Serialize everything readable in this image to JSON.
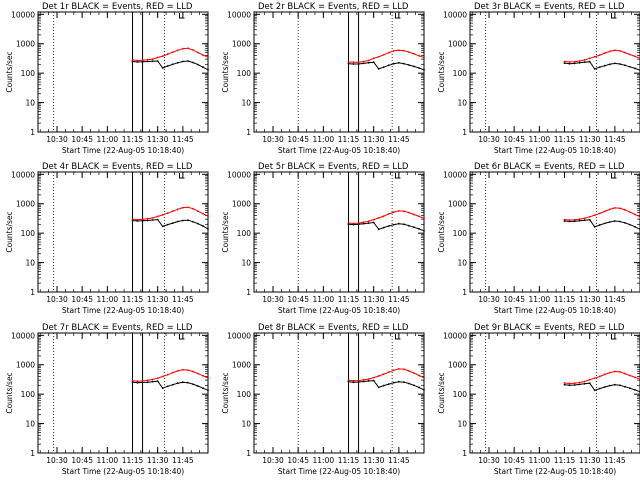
{
  "figure": {
    "x_tick_labels": [
      "10:30",
      "10:45",
      "11:00",
      "11:15",
      "11:30",
      "11:45"
    ],
    "y_tick_labels": [
      "1",
      "10",
      "100",
      "1000",
      "10000"
    ],
    "ylabel": "Counts/sec",
    "xlabel": "Start Time (22-Aug-05 10:18:40)"
  },
  "chart_data": [
    {
      "type": "line",
      "title": "Det 1r BLACK = Events, RED = LLD",
      "xlabel": "Start Time (22-Aug-05 10:18:40)",
      "ylabel": "Counts/sec",
      "xlim": [
        "10:18:40",
        "12:00"
      ],
      "ylim": [
        1,
        12000
      ],
      "yscale": "log",
      "x_ticks": [
        "10:30",
        "10:45",
        "11:00",
        "11:15",
        "11:30",
        "11:45"
      ],
      "vertical_markers": {
        "dotted": [
          "10:28",
          "11:34"
        ],
        "solid": [
          "11:15",
          "11:21"
        ]
      },
      "x": [
        "11:15",
        "11:18",
        "11:21",
        "11:24",
        "11:27",
        "11:30",
        "11:33",
        "11:36",
        "11:39",
        "11:42",
        "11:45",
        "11:48",
        "11:51",
        "11:54",
        "11:57",
        "12:00"
      ],
      "series": [
        {
          "name": "BLACK = Events",
          "color": "#000000",
          "values": [
            250,
            240,
            245,
            250,
            255,
            260,
            150,
            175,
            200,
            225,
            250,
            260,
            230,
            195,
            160,
            130
          ]
        },
        {
          "name": "RED = LLD",
          "color": "#ff0000",
          "values": [
            280,
            270,
            275,
            285,
            300,
            340,
            380,
            440,
            520,
            600,
            680,
            700,
            620,
            500,
            410,
            350
          ]
        }
      ]
    },
    {
      "type": "line",
      "title": "Det 2r BLACK = Events, RED = LLD",
      "xlabel": "Start Time (22-Aug-05 10:18:40)",
      "ylabel": "Counts/sec",
      "xlim": [
        "10:18:40",
        "12:00"
      ],
      "ylim": [
        1,
        12000
      ],
      "yscale": "log",
      "x_ticks": [
        "10:30",
        "10:45",
        "11:00",
        "11:15",
        "11:30",
        "11:45"
      ],
      "vertical_markers": {
        "dotted": [
          "10:45",
          "11:41"
        ],
        "solid": [
          "11:15",
          "11:21"
        ]
      },
      "x": [
        "11:15",
        "11:18",
        "11:21",
        "11:24",
        "11:27",
        "11:30",
        "11:33",
        "11:36",
        "11:39",
        "11:42",
        "11:45",
        "11:48",
        "11:51",
        "11:54",
        "11:57",
        "12:00"
      ],
      "series": [
        {
          "name": "BLACK = Events",
          "color": "#000000",
          "values": [
            210,
            205,
            205,
            215,
            225,
            235,
            140,
            160,
            185,
            210,
            225,
            210,
            190,
            170,
            150,
            130
          ]
        },
        {
          "name": "RED = LLD",
          "color": "#ff0000",
          "values": [
            240,
            235,
            235,
            250,
            270,
            320,
            360,
            420,
            500,
            570,
            600,
            580,
            520,
            450,
            390,
            340
          ]
        }
      ]
    },
    {
      "type": "line",
      "title": "Det 3r BLACK = Events, RED = LLD",
      "xlabel": "Start Time (22-Aug-05 10:18:40)",
      "ylabel": "Counts/sec",
      "xlim": [
        "10:18:40",
        "12:00"
      ],
      "ylim": [
        1,
        12000
      ],
      "yscale": "log",
      "x_ticks": [
        "10:30",
        "10:45",
        "11:00",
        "11:15",
        "11:30",
        "11:45"
      ],
      "vertical_markers": {
        "dotted": [
          "10:28",
          "11:34"
        ],
        "solid": []
      },
      "x": [
        "11:15",
        "11:18",
        "11:21",
        "11:24",
        "11:27",
        "11:30",
        "11:33",
        "11:36",
        "11:39",
        "11:42",
        "11:45",
        "11:48",
        "11:51",
        "11:54",
        "11:57",
        "12:00"
      ],
      "series": [
        {
          "name": "BLACK = Events",
          "color": "#000000",
          "values": [
            220,
            210,
            215,
            225,
            235,
            245,
            140,
            160,
            180,
            200,
            215,
            205,
            185,
            165,
            145,
            125
          ]
        },
        {
          "name": "RED = LLD",
          "color": "#ff0000",
          "values": [
            250,
            240,
            245,
            260,
            280,
            320,
            360,
            410,
            480,
            550,
            600,
            570,
            500,
            430,
            370,
            320
          ]
        }
      ]
    },
    {
      "type": "line",
      "title": "Det 4r BLACK = Events, RED = LLD",
      "xlabel": "Start Time (22-Aug-05 10:18:40)",
      "ylabel": "Counts/sec",
      "xlim": [
        "10:18:40",
        "12:00"
      ],
      "ylim": [
        1,
        12000
      ],
      "yscale": "log",
      "x_ticks": [
        "10:30",
        "10:45",
        "11:00",
        "11:15",
        "11:30",
        "11:45"
      ],
      "vertical_markers": {
        "dotted": [
          "10:28",
          "11:34"
        ],
        "solid": [
          "11:15",
          "11:21"
        ]
      },
      "x": [
        "11:15",
        "11:18",
        "11:21",
        "11:24",
        "11:27",
        "11:30",
        "11:33",
        "11:36",
        "11:39",
        "11:42",
        "11:45",
        "11:48",
        "11:51",
        "11:54",
        "11:57",
        "12:00"
      ],
      "series": [
        {
          "name": "BLACK = Events",
          "color": "#000000",
          "values": [
            270,
            260,
            265,
            270,
            280,
            290,
            170,
            195,
            220,
            250,
            270,
            275,
            245,
            210,
            175,
            140
          ]
        },
        {
          "name": "RED = LLD",
          "color": "#ff0000",
          "values": [
            300,
            290,
            295,
            310,
            330,
            370,
            420,
            480,
            560,
            650,
            740,
            760,
            680,
            560,
            460,
            380
          ]
        }
      ]
    },
    {
      "type": "line",
      "title": "Det 5r BLACK = Events, RED = LLD",
      "xlabel": "Start Time (22-Aug-05 10:18:40)",
      "ylabel": "Counts/sec",
      "xlim": [
        "10:18:40",
        "12:00"
      ],
      "ylim": [
        1,
        12000
      ],
      "yscale": "log",
      "x_ticks": [
        "10:30",
        "10:45",
        "11:00",
        "11:15",
        "11:30",
        "11:45"
      ],
      "vertical_markers": {
        "dotted": [
          "10:45",
          "11:41"
        ],
        "solid": [
          "11:15",
          "11:21"
        ]
      },
      "x": [
        "11:15",
        "11:18",
        "11:21",
        "11:24",
        "11:27",
        "11:30",
        "11:33",
        "11:36",
        "11:39",
        "11:42",
        "11:45",
        "11:48",
        "11:51",
        "11:54",
        "11:57",
        "12:00"
      ],
      "series": [
        {
          "name": "BLACK = Events",
          "color": "#000000",
          "values": [
            200,
            195,
            200,
            210,
            220,
            230,
            135,
            155,
            175,
            195,
            210,
            200,
            180,
            160,
            140,
            120
          ]
        },
        {
          "name": "RED = LLD",
          "color": "#ff0000",
          "values": [
            220,
            215,
            220,
            235,
            255,
            290,
            330,
            380,
            450,
            520,
            570,
            560,
            500,
            430,
            370,
            320
          ]
        }
      ]
    },
    {
      "type": "line",
      "title": "Det 6r BLACK = Events, RED = LLD",
      "xlabel": "Start Time (22-Aug-05 10:18:40)",
      "ylabel": "Counts/sec",
      "xlim": [
        "10:18:40",
        "12:00"
      ],
      "ylim": [
        1,
        12000
      ],
      "yscale": "log",
      "x_ticks": [
        "10:30",
        "10:45",
        "11:00",
        "11:15",
        "11:30",
        "11:45"
      ],
      "vertical_markers": {
        "dotted": [
          "10:28",
          "11:34"
        ],
        "solid": []
      },
      "x": [
        "11:15",
        "11:18",
        "11:21",
        "11:24",
        "11:27",
        "11:30",
        "11:33",
        "11:36",
        "11:39",
        "11:42",
        "11:45",
        "11:48",
        "11:51",
        "11:54",
        "11:57",
        "12:00"
      ],
      "series": [
        {
          "name": "BLACK = Events",
          "color": "#000000",
          "values": [
            260,
            250,
            255,
            265,
            275,
            285,
            165,
            190,
            215,
            240,
            260,
            250,
            225,
            195,
            165,
            135
          ]
        },
        {
          "name": "RED = LLD",
          "color": "#ff0000",
          "values": [
            290,
            280,
            285,
            300,
            320,
            360,
            410,
            470,
            550,
            640,
            720,
            700,
            620,
            520,
            430,
            360
          ]
        }
      ]
    },
    {
      "type": "line",
      "title": "Det 7r BLACK = Events, RED = LLD",
      "xlabel": "Start Time (22-Aug-05 10:18:40)",
      "ylabel": "Counts/sec",
      "xlim": [
        "10:18:40",
        "12:00"
      ],
      "ylim": [
        1,
        12000
      ],
      "yscale": "log",
      "x_ticks": [
        "10:30",
        "10:45",
        "11:00",
        "11:15",
        "11:30",
        "11:45"
      ],
      "vertical_markers": {
        "dotted": [
          "10:28",
          "11:34"
        ],
        "solid": [
          "11:15",
          "11:21"
        ]
      },
      "x": [
        "11:15",
        "11:18",
        "11:21",
        "11:24",
        "11:27",
        "11:30",
        "11:33",
        "11:36",
        "11:39",
        "11:42",
        "11:45",
        "11:48",
        "11:51",
        "11:54",
        "11:57",
        "12:00"
      ],
      "series": [
        {
          "name": "BLACK = Events",
          "color": "#000000",
          "values": [
            255,
            245,
            250,
            255,
            265,
            275,
            160,
            185,
            210,
            235,
            255,
            245,
            220,
            190,
            160,
            135
          ]
        },
        {
          "name": "RED = LLD",
          "color": "#ff0000",
          "values": [
            285,
            275,
            280,
            295,
            315,
            350,
            400,
            460,
            540,
            620,
            680,
            660,
            590,
            500,
            420,
            350
          ]
        }
      ]
    },
    {
      "type": "line",
      "title": "Det 8r BLACK = Events, RED = LLD",
      "xlabel": "Start Time (22-Aug-05 10:18:40)",
      "ylabel": "Counts/sec",
      "xlim": [
        "10:18:40",
        "12:00"
      ],
      "ylim": [
        1,
        12000
      ],
      "yscale": "log",
      "x_ticks": [
        "10:30",
        "10:45",
        "11:00",
        "11:15",
        "11:30",
        "11:45"
      ],
      "vertical_markers": {
        "dotted": [
          "10:45",
          "11:41"
        ],
        "solid": [
          "11:15",
          "11:21"
        ]
      },
      "x": [
        "11:15",
        "11:18",
        "11:21",
        "11:24",
        "11:27",
        "11:30",
        "11:33",
        "11:36",
        "11:39",
        "11:42",
        "11:45",
        "11:48",
        "11:51",
        "11:54",
        "11:57",
        "12:00"
      ],
      "series": [
        {
          "name": "BLACK = Events",
          "color": "#000000",
          "values": [
            265,
            255,
            260,
            270,
            280,
            290,
            170,
            195,
            220,
            245,
            265,
            255,
            230,
            200,
            170,
            140
          ]
        },
        {
          "name": "RED = LLD",
          "color": "#ff0000",
          "values": [
            295,
            285,
            290,
            305,
            325,
            365,
            415,
            480,
            560,
            650,
            720,
            700,
            620,
            520,
            430,
            360
          ]
        }
      ]
    },
    {
      "type": "line",
      "title": "Det 9r BLACK = Events, RED = LLD",
      "xlabel": "Start Time (22-Aug-05 10:18:40)",
      "ylabel": "Counts/sec",
      "xlim": [
        "10:18:40",
        "12:00"
      ],
      "ylim": [
        1,
        12000
      ],
      "yscale": "log",
      "x_ticks": [
        "10:30",
        "10:45",
        "11:00",
        "11:15",
        "11:30",
        "11:45"
      ],
      "vertical_markers": {
        "dotted": [
          "10:28",
          "11:34"
        ],
        "solid": []
      },
      "x": [
        "11:15",
        "11:18",
        "11:21",
        "11:24",
        "11:27",
        "11:30",
        "11:33",
        "11:36",
        "11:39",
        "11:42",
        "11:45",
        "11:48",
        "11:51",
        "11:54",
        "11:57",
        "12:00"
      ],
      "series": [
        {
          "name": "BLACK = Events",
          "color": "#000000",
          "values": [
            210,
            200,
            205,
            215,
            225,
            235,
            135,
            155,
            175,
            195,
            210,
            200,
            180,
            160,
            140,
            120
          ]
        },
        {
          "name": "RED = LLD",
          "color": "#ff0000",
          "values": [
            240,
            230,
            235,
            250,
            270,
            310,
            350,
            400,
            470,
            540,
            590,
            570,
            500,
            430,
            370,
            320
          ]
        }
      ]
    }
  ]
}
